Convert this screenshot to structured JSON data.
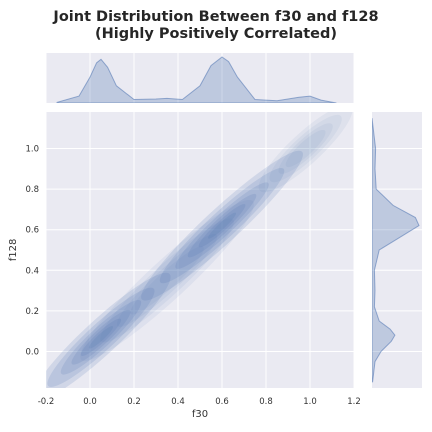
{
  "chart_data": {
    "type": "kde-joint",
    "title_lines": [
      "Joint Distribution Between f30 and f128",
      "(Highly Positively Correlated)"
    ],
    "xlabel": "f30",
    "ylabel": "f128",
    "xlim": [
      -0.2,
      1.2
    ],
    "ylim": [
      -0.18,
      1.18
    ],
    "xticks": [
      -0.2,
      0.0,
      0.2,
      0.4,
      0.6,
      0.8,
      1.0,
      1.2
    ],
    "xtick_labels": [
      "-0.2",
      "0.0",
      "0.2",
      "0.4",
      "0.6",
      "0.8",
      "1.0",
      "1.2"
    ],
    "yticks": [
      0.0,
      0.2,
      0.4,
      0.6,
      0.8,
      1.0
    ],
    "ytick_labels": [
      "0.0",
      "0.2",
      "0.4",
      "0.6",
      "0.8",
      "1.0"
    ],
    "grid": true,
    "colors": {
      "fill": "#4c72b0",
      "background": "#eaeaf2",
      "grid": "#ffffff"
    },
    "clusters": [
      {
        "name": "low",
        "center": [
          0.05,
          0.07
        ],
        "spread_along": 0.12,
        "spread_across": 0.022,
        "weight": 1.0
      },
      {
        "name": "mid",
        "center": [
          0.6,
          0.62
        ],
        "spread_along": 0.14,
        "spread_across": 0.022,
        "weight": 1.0
      },
      {
        "name": "high",
        "center": [
          0.98,
          1.0
        ],
        "spread_along": 0.08,
        "spread_across": 0.02,
        "weight": 0.25
      },
      {
        "name": "bridge",
        "center": [
          0.35,
          0.35
        ],
        "spread_along": 0.15,
        "spread_across": 0.025,
        "weight": 0.3
      }
    ],
    "x_marginal": {
      "x": [
        -0.15,
        -0.05,
        0.0,
        0.03,
        0.05,
        0.08,
        0.12,
        0.2,
        0.3,
        0.35,
        0.42,
        0.5,
        0.55,
        0.6,
        0.63,
        0.67,
        0.75,
        0.85,
        0.95,
        1.0,
        1.05,
        1.12
      ],
      "density": [
        0.01,
        0.12,
        0.45,
        0.7,
        0.76,
        0.62,
        0.3,
        0.06,
        0.07,
        0.08,
        0.06,
        0.3,
        0.65,
        0.8,
        0.72,
        0.45,
        0.06,
        0.04,
        0.1,
        0.12,
        0.05,
        0.0
      ]
    },
    "y_marginal": {
      "y": [
        -0.15,
        -0.05,
        0.0,
        0.05,
        0.08,
        0.11,
        0.15,
        0.22,
        0.3,
        0.4,
        0.5,
        0.56,
        0.62,
        0.66,
        0.72,
        0.8,
        0.9,
        1.0,
        1.05,
        1.15
      ],
      "density": [
        0.01,
        0.05,
        0.15,
        0.32,
        0.38,
        0.3,
        0.12,
        0.04,
        0.05,
        0.04,
        0.12,
        0.45,
        0.78,
        0.72,
        0.35,
        0.07,
        0.05,
        0.06,
        0.04,
        0.0
      ]
    }
  }
}
